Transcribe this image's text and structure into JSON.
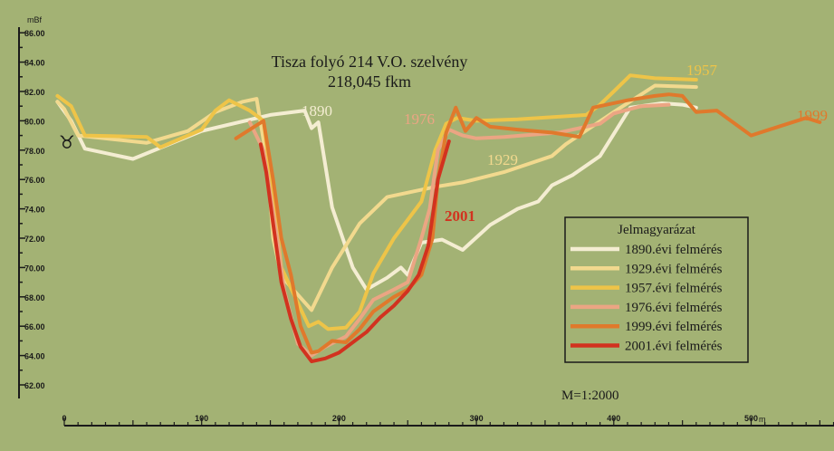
{
  "chart_data": {
    "type": "line",
    "title": "Tisza folyó 214 V.O. szelvény",
    "subtitle": "218,045 fkm",
    "ylabel": "mBf",
    "xlabel_unit": "m",
    "ylim": [
      62,
      86
    ],
    "xlim": [
      0,
      560
    ],
    "yticks": [
      "86.00",
      "84.00",
      "82.00",
      "80.00",
      "78.00",
      "76.00",
      "74.00",
      "72.00",
      "70.00",
      "68.00",
      "66.00",
      "64.00",
      "62.00"
    ],
    "xticks": [
      "0",
      "100",
      "200",
      "300",
      "400",
      "500"
    ],
    "symbol": "♉",
    "scale_note": "M=1:2000",
    "legend_title": "Jelmagyarázat",
    "series": [
      {
        "name": "1890.évi felmérés",
        "label": "1890",
        "color": "#f4edd2",
        "points": [
          [
            -5,
            81.3
          ],
          [
            5,
            80
          ],
          [
            15,
            78.1
          ],
          [
            50,
            77.4
          ],
          [
            100,
            79.3
          ],
          [
            150,
            80.4
          ],
          [
            175,
            80.7
          ],
          [
            180,
            79.5
          ],
          [
            185,
            79.9
          ],
          [
            195,
            74.1
          ],
          [
            210,
            70
          ],
          [
            220,
            68.5
          ],
          [
            235,
            69.3
          ],
          [
            245,
            70
          ],
          [
            250,
            69.5
          ],
          [
            260,
            71.7
          ],
          [
            275,
            71.9
          ],
          [
            290,
            71.2
          ],
          [
            310,
            72.9
          ],
          [
            330,
            74
          ],
          [
            345,
            74.5
          ],
          [
            355,
            75.6
          ],
          [
            370,
            76.3
          ],
          [
            390,
            77.6
          ],
          [
            412,
            80.9
          ],
          [
            435,
            81.2
          ],
          [
            450,
            81.1
          ],
          [
            460,
            80.9
          ]
        ]
      },
      {
        "name": "1929.évi felmérés",
        "label": "1929",
        "color": "#f2d98e",
        "points": [
          [
            -5,
            81.3
          ],
          [
            0,
            80.8
          ],
          [
            10,
            79
          ],
          [
            60,
            78.5
          ],
          [
            90,
            79.3
          ],
          [
            110,
            80.6
          ],
          [
            130,
            81.3
          ],
          [
            140,
            81.5
          ],
          [
            148,
            77
          ],
          [
            152,
            72
          ],
          [
            158,
            69.4
          ],
          [
            180,
            67.1
          ],
          [
            195,
            70
          ],
          [
            205,
            71.5
          ],
          [
            215,
            73
          ],
          [
            235,
            74.8
          ],
          [
            270,
            75.5
          ],
          [
            290,
            75.8
          ],
          [
            320,
            76.5
          ],
          [
            355,
            77.6
          ],
          [
            365,
            78.4
          ],
          [
            400,
            80.6
          ],
          [
            430,
            82.4
          ],
          [
            460,
            82.3
          ]
        ]
      },
      {
        "name": "1957.évi felmérés",
        "label": "1957",
        "color": "#eec448",
        "points": [
          [
            -5,
            81.7
          ],
          [
            5,
            81
          ],
          [
            15,
            79
          ],
          [
            60,
            78.9
          ],
          [
            70,
            78.2
          ],
          [
            100,
            79.4
          ],
          [
            110,
            80.7
          ],
          [
            120,
            81.4
          ],
          [
            135,
            80.7
          ],
          [
            145,
            80
          ],
          [
            152,
            75
          ],
          [
            158,
            70
          ],
          [
            165,
            68.6
          ],
          [
            178,
            66
          ],
          [
            185,
            66.3
          ],
          [
            192,
            65.8
          ],
          [
            205,
            65.9
          ],
          [
            215,
            67
          ],
          [
            225,
            69.6
          ],
          [
            240,
            72
          ],
          [
            260,
            74.5
          ],
          [
            270,
            78
          ],
          [
            278,
            79.8
          ],
          [
            286,
            80.2
          ],
          [
            300,
            80
          ],
          [
            330,
            80.1
          ],
          [
            380,
            80.4
          ],
          [
            390,
            81.1
          ],
          [
            400,
            82
          ],
          [
            412,
            83.1
          ],
          [
            430,
            82.9
          ],
          [
            460,
            82.8
          ]
        ]
      },
      {
        "name": "1976.évi felmérés",
        "label": "1976",
        "color": "#eba583",
        "points": [
          [
            135,
            79.9
          ],
          [
            145,
            78
          ],
          [
            155,
            72
          ],
          [
            160,
            68.5
          ],
          [
            170,
            64.8
          ],
          [
            180,
            64
          ],
          [
            190,
            64.6
          ],
          [
            205,
            65.3
          ],
          [
            215,
            66.5
          ],
          [
            225,
            67.8
          ],
          [
            240,
            68.5
          ],
          [
            250,
            69
          ],
          [
            260,
            72
          ],
          [
            266,
            74
          ],
          [
            272,
            78
          ],
          [
            280,
            79.4
          ],
          [
            290,
            79
          ],
          [
            300,
            78.8
          ],
          [
            320,
            78.9
          ],
          [
            360,
            79.2
          ],
          [
            390,
            79.8
          ],
          [
            400,
            80.5
          ],
          [
            420,
            81
          ],
          [
            440,
            81.1
          ]
        ]
      },
      {
        "name": "1999.évi felmérés",
        "label": "1999",
        "color": "#e0792c",
        "points": [
          [
            125,
            78.8
          ],
          [
            145,
            80
          ],
          [
            152,
            76
          ],
          [
            158,
            72
          ],
          [
            165,
            69.5
          ],
          [
            172,
            66
          ],
          [
            180,
            64.2
          ],
          [
            185,
            64.3
          ],
          [
            195,
            65
          ],
          [
            205,
            64.9
          ],
          [
            215,
            65.8
          ],
          [
            225,
            67
          ],
          [
            240,
            68
          ],
          [
            250,
            68.5
          ],
          [
            260,
            69.5
          ],
          [
            268,
            72
          ],
          [
            272,
            76
          ],
          [
            278,
            79.2
          ],
          [
            285,
            80.9
          ],
          [
            292,
            79.3
          ],
          [
            300,
            80.2
          ],
          [
            310,
            79.6
          ],
          [
            330,
            79.4
          ],
          [
            355,
            79.2
          ],
          [
            375,
            78.9
          ],
          [
            385,
            80.9
          ],
          [
            410,
            81.4
          ],
          [
            430,
            81.7
          ],
          [
            440,
            81.8
          ],
          [
            450,
            81.7
          ],
          [
            460,
            80.6
          ],
          [
            475,
            80.7
          ],
          [
            500,
            79
          ],
          [
            510,
            79.3
          ],
          [
            540,
            80.2
          ],
          [
            550,
            79.9
          ]
        ]
      },
      {
        "name": "2001.évi felmérés",
        "label": "2001",
        "color": "#d2321f",
        "points": [
          [
            143,
            78.4
          ],
          [
            147,
            76.5
          ],
          [
            152,
            73
          ],
          [
            158,
            69
          ],
          [
            165,
            66.5
          ],
          [
            172,
            64.6
          ],
          [
            180,
            63.6
          ],
          [
            190,
            63.8
          ],
          [
            200,
            64.2
          ],
          [
            210,
            64.9
          ],
          [
            220,
            65.6
          ],
          [
            230,
            66.6
          ],
          [
            240,
            67.4
          ],
          [
            250,
            68.4
          ],
          [
            258,
            69.5
          ],
          [
            265,
            71.5
          ],
          [
            272,
            76
          ],
          [
            280,
            78.6
          ]
        ]
      }
    ]
  }
}
